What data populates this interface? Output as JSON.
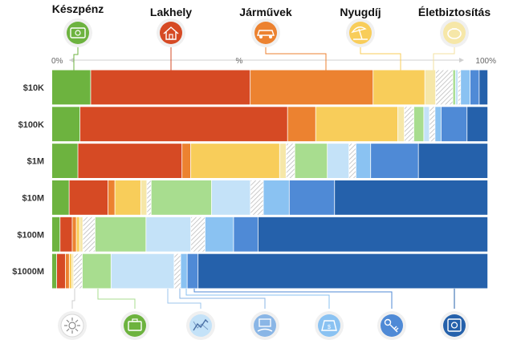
{
  "chart_data": {
    "type": "bar",
    "stacked": true,
    "orientation": "horizontal",
    "axis": {
      "left": "0%",
      "mid": "%",
      "right": "100%",
      "range": [
        0,
        100
      ]
    },
    "top_categories": [
      {
        "label": "Készpénz",
        "color": "#6db33f",
        "icon": "cash-icon"
      },
      {
        "label": "Lakhely",
        "color": "#d64a24",
        "icon": "house-icon"
      },
      {
        "label": "Járművek",
        "color": "#ec8230",
        "icon": "car-icon"
      },
      {
        "label": "Nyugdíj",
        "color": "#f8cd5a",
        "icon": "beach-umbrella-icon"
      },
      {
        "label": "Életbiztosítás",
        "color": "#f6e7a8",
        "icon": "piggy-bank-icon"
      }
    ],
    "bottom_icons": [
      "network-money-icon",
      "briefcase-icon",
      "stock-chart-icon",
      "money-hand-icon",
      "money-bag-icon",
      "keys-icon",
      "safe-icon"
    ],
    "rows": [
      "$10K",
      "$100K",
      "$1M",
      "$10M",
      "$100M",
      "$1000M"
    ],
    "segment_colors": [
      "#6db33f",
      "#d64a24",
      "#ec8230",
      "#f8cd5a",
      "#f6e7a8",
      "#e2e2e2",
      "#a8dd8f",
      "#c4e2f8",
      "#a4c8ee",
      "#8ac2f2",
      "#4f8ad6",
      "#2561ab"
    ],
    "segment_patterns": [
      false,
      false,
      false,
      false,
      false,
      true,
      false,
      false,
      true,
      false,
      false,
      false
    ],
    "series_values": [
      [
        9,
        37,
        28.5,
        12,
        2.5,
        4,
        0.6,
        0.6,
        0.6,
        2.2,
        2.1,
        2
      ],
      [
        6.5,
        48,
        6.5,
        19,
        1.5,
        2.2,
        2.3,
        1.3,
        1.3,
        1.4,
        6,
        4.8
      ],
      [
        6,
        24,
        2,
        20.5,
        1.5,
        2,
        7.5,
        5,
        1.6,
        3.4,
        11,
        16
      ],
      [
        4,
        9,
        1.6,
        6,
        1.4,
        1,
        14,
        9,
        3,
        6,
        10.5,
        35.5
      ],
      [
        2,
        3,
        1,
        0.8,
        0.8,
        3,
        12.5,
        11,
        3.5,
        7,
        6,
        56.4
      ],
      [
        1.1,
        2,
        0.9,
        0.6,
        0.4,
        2,
        6.6,
        14.5,
        1.5,
        1.5,
        2.5,
        66.6
      ]
    ]
  }
}
